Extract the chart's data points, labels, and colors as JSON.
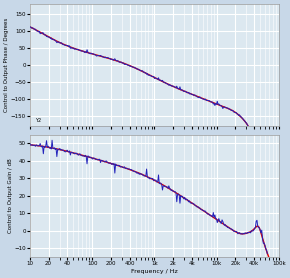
{
  "title": "",
  "xlabel": "Frequency / Hz",
  "ylabel_top": "Control to Output Phase / Degrees",
  "ylabel_bottom": "Control to Output Gain / dB",
  "freq_min": 10,
  "freq_max": 100000,
  "phase_ylim": [
    -180,
    180
  ],
  "phase_yticks": [
    -150,
    -100,
    -50,
    0,
    50,
    100,
    150
  ],
  "gain_ylim": [
    -15,
    55
  ],
  "gain_yticks": [
    -10,
    0,
    10,
    20,
    30,
    40,
    50
  ],
  "xticks": [
    10,
    20,
    40,
    100,
    200,
    400,
    1000,
    2000,
    4000,
    10000,
    20000,
    40000,
    100000
  ],
  "xticklabels": [
    "10",
    "20",
    "40",
    "100",
    "200",
    "400",
    "1k",
    "2k",
    "4k",
    "10k",
    "20k",
    "40k",
    "100k"
  ],
  "bg_color": "#dce8f0",
  "grid_color": "#ffffff",
  "line_blue": "#2222bb",
  "line_red": "#dd0000",
  "fig_bg": "#c8d8e8"
}
